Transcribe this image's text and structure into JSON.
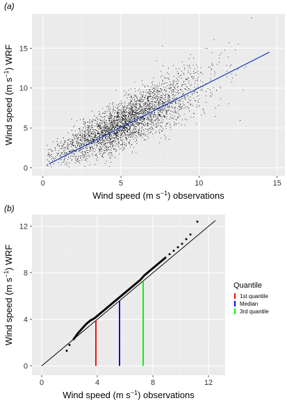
{
  "chart_data": [
    {
      "panel_label": "(a)",
      "type": "scatter",
      "xlabel_pre": "Wind speed (m s",
      "xlabel_sup": "−1",
      "xlabel_post": ") observations",
      "ylabel_pre": "Wind speed (m s",
      "ylabel_sup": "−1",
      "ylabel_post": ") WRF",
      "xlim": [
        -0.7,
        15.5
      ],
      "ylim": [
        -1.0,
        19.3
      ],
      "xticks": [
        0,
        5,
        10,
        15
      ],
      "yticks": [
        0,
        5,
        10,
        15
      ],
      "grid": true,
      "background": "#ebebeb",
      "point_color": "#000000",
      "points_description_count": 15000,
      "cloud_model": {
        "slope": 0.93,
        "intercept": 0.8,
        "x_range": [
          0.2,
          14.5
        ],
        "x_mode": 5.0,
        "y_spread": 1.5
      },
      "fit_line": {
        "x": [
          0.4,
          14.5
        ],
        "y": [
          0.5,
          14.5
        ],
        "color": "#2233cc"
      }
    },
    {
      "panel_label": "(b)",
      "type": "line",
      "xlabel_pre": "Wind speed (m s",
      "xlabel_sup": "−1",
      "xlabel_post": ") observations",
      "ylabel_pre": "Wind speed (m s",
      "ylabel_sup": "−1",
      "ylabel_post": ") WRF",
      "xlim": [
        -0.7,
        13.2
      ],
      "ylim": [
        -0.8,
        13.0
      ],
      "xticks": [
        0,
        4,
        8,
        12
      ],
      "yticks": [
        0,
        4,
        8,
        12
      ],
      "grid": true,
      "background": "#ebebeb",
      "qq_points": {
        "x": [
          1.8,
          2.0,
          2.3,
          2.6,
          2.9,
          3.2,
          3.5,
          3.8,
          4.1,
          4.4,
          4.7,
          5.0,
          5.3,
          5.6,
          5.9,
          6.2,
          6.5,
          6.8,
          7.1,
          7.4,
          7.7,
          8.0,
          8.3,
          8.6,
          8.9,
          9.2,
          9.5,
          9.8,
          10.1,
          10.4,
          10.7,
          11.2
        ],
        "y": [
          1.3,
          1.8,
          2.3,
          2.8,
          3.2,
          3.6,
          3.9,
          4.1,
          4.4,
          4.7,
          5.0,
          5.3,
          5.6,
          5.9,
          6.2,
          6.5,
          6.8,
          7.1,
          7.4,
          7.8,
          8.1,
          8.4,
          8.7,
          9.0,
          9.3,
          9.6,
          9.9,
          10.2,
          10.5,
          10.9,
          11.3,
          12.4
        ]
      },
      "identity_line": {
        "x": [
          0,
          12.5
        ],
        "y": [
          0,
          12.5
        ],
        "color": "#000000"
      },
      "quantile_lines": [
        {
          "name": "1st quantile",
          "x": 3.9,
          "y_top": 3.9,
          "color": "#ee1111"
        },
        {
          "name": "Median",
          "x": 5.6,
          "y_top": 5.6,
          "color": "#1111cc"
        },
        {
          "name": "3rd quantile",
          "x": 7.3,
          "y_top": 7.3,
          "color": "#11ee11"
        }
      ],
      "legend": {
        "title": "Quantile",
        "placement": "right"
      }
    }
  ]
}
